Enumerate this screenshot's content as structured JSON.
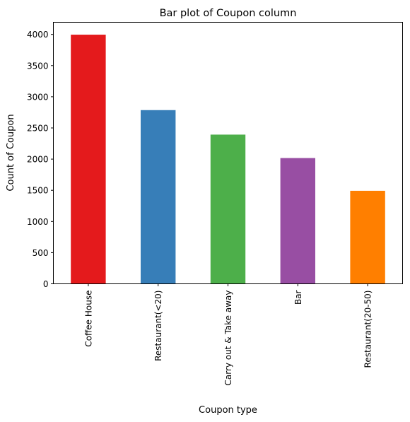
{
  "chart_data": {
    "type": "bar",
    "title": "Bar plot of Coupon column",
    "xlabel": "Coupon type",
    "ylabel": "Count of Coupon",
    "categories": [
      "Coffee House",
      "Restaurant(<20)",
      "Carry out & Take away",
      "Bar",
      "Restaurant(20-50)"
    ],
    "values": [
      3996,
      2786,
      2393,
      2017,
      1492
    ],
    "colors": [
      "#e41a1c",
      "#377eb8",
      "#4daf4a",
      "#984ea3",
      "#ff7f00"
    ],
    "yticks": [
      0,
      500,
      1000,
      1500,
      2000,
      2500,
      3000,
      3500,
      4000
    ],
    "ylim": [
      0,
      4195
    ],
    "grid": false,
    "legend": false
  }
}
